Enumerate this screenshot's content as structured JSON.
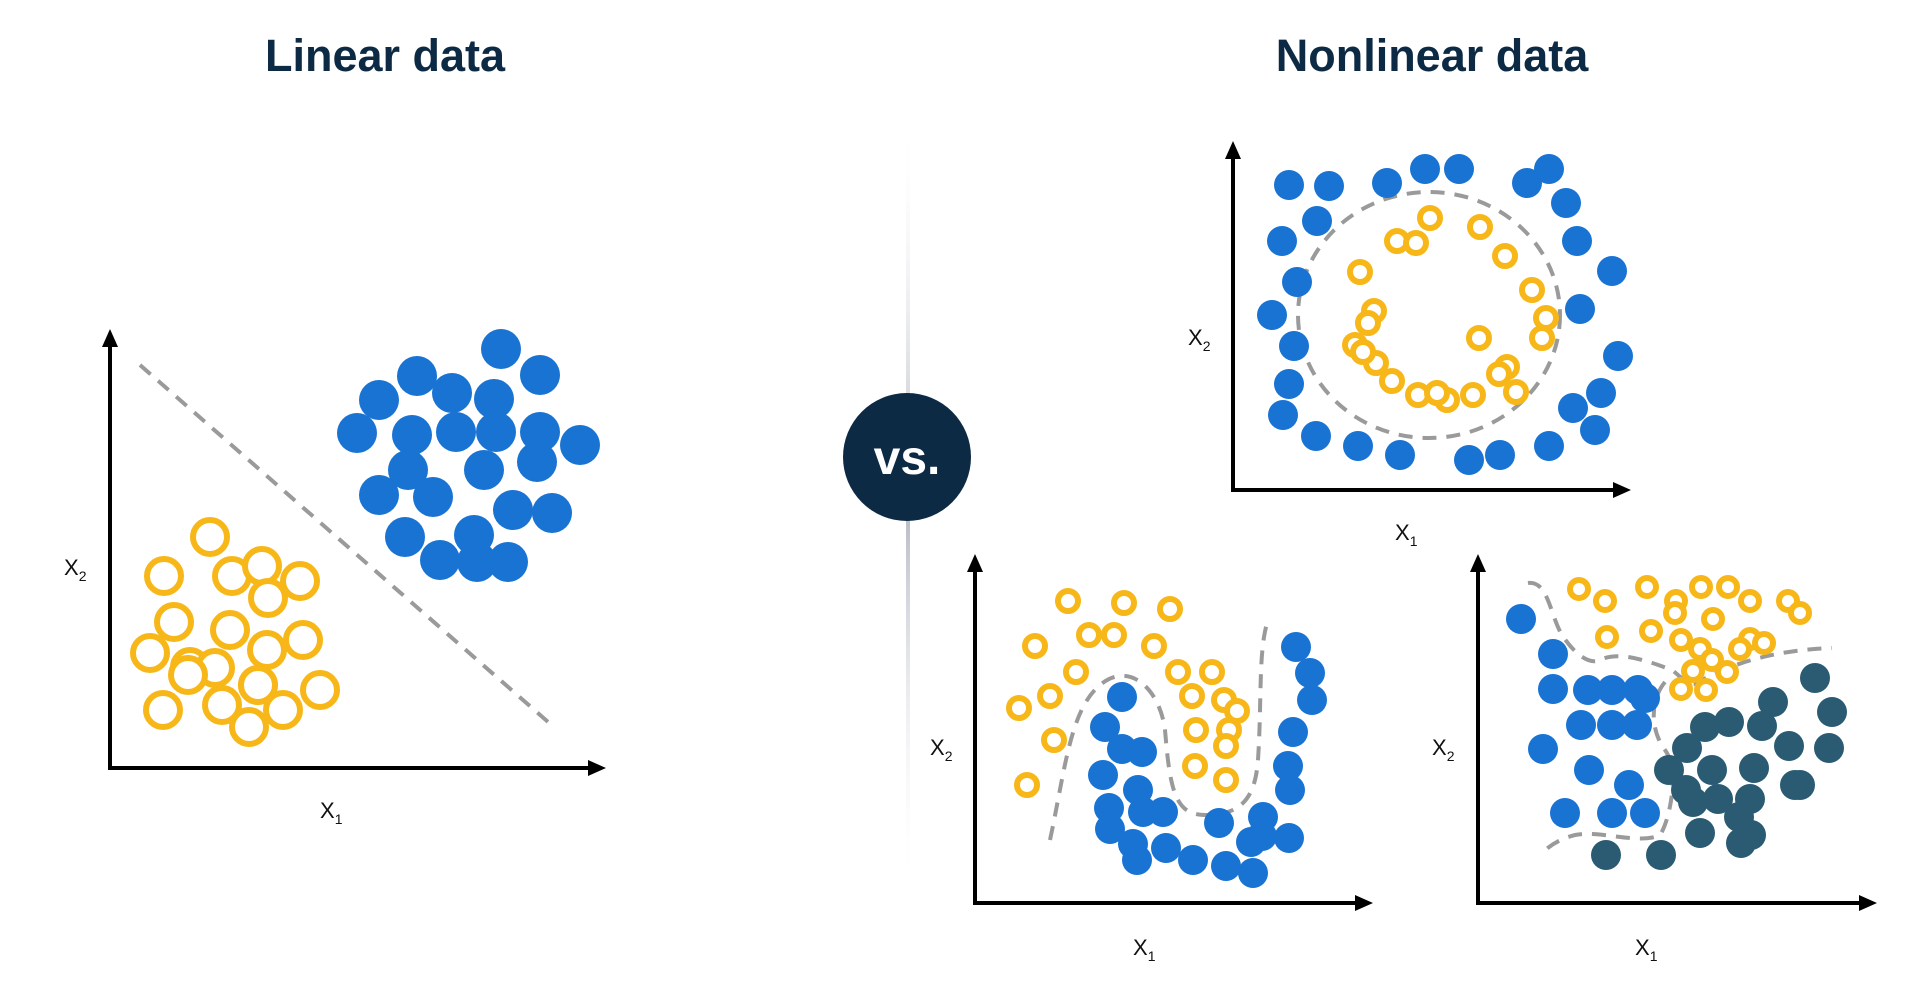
{
  "titles": {
    "left": "Linear data",
    "right": "Nonlinear data"
  },
  "vs_label": "vs.",
  "axis_labels": {
    "x_main": "X",
    "x_sub": "1",
    "y_main": "X",
    "y_sub": "2"
  },
  "colors": {
    "heading": "#0d2a45",
    "class_a_ring": "#f7b718",
    "class_b_fill": "#1873d3",
    "class_c_fill": "#2a5b73",
    "vs_badge": "#0d2a45",
    "separator": "#9a9a9a"
  },
  "icons": {
    "axis_arrow": "arrow-head-icon"
  }
}
